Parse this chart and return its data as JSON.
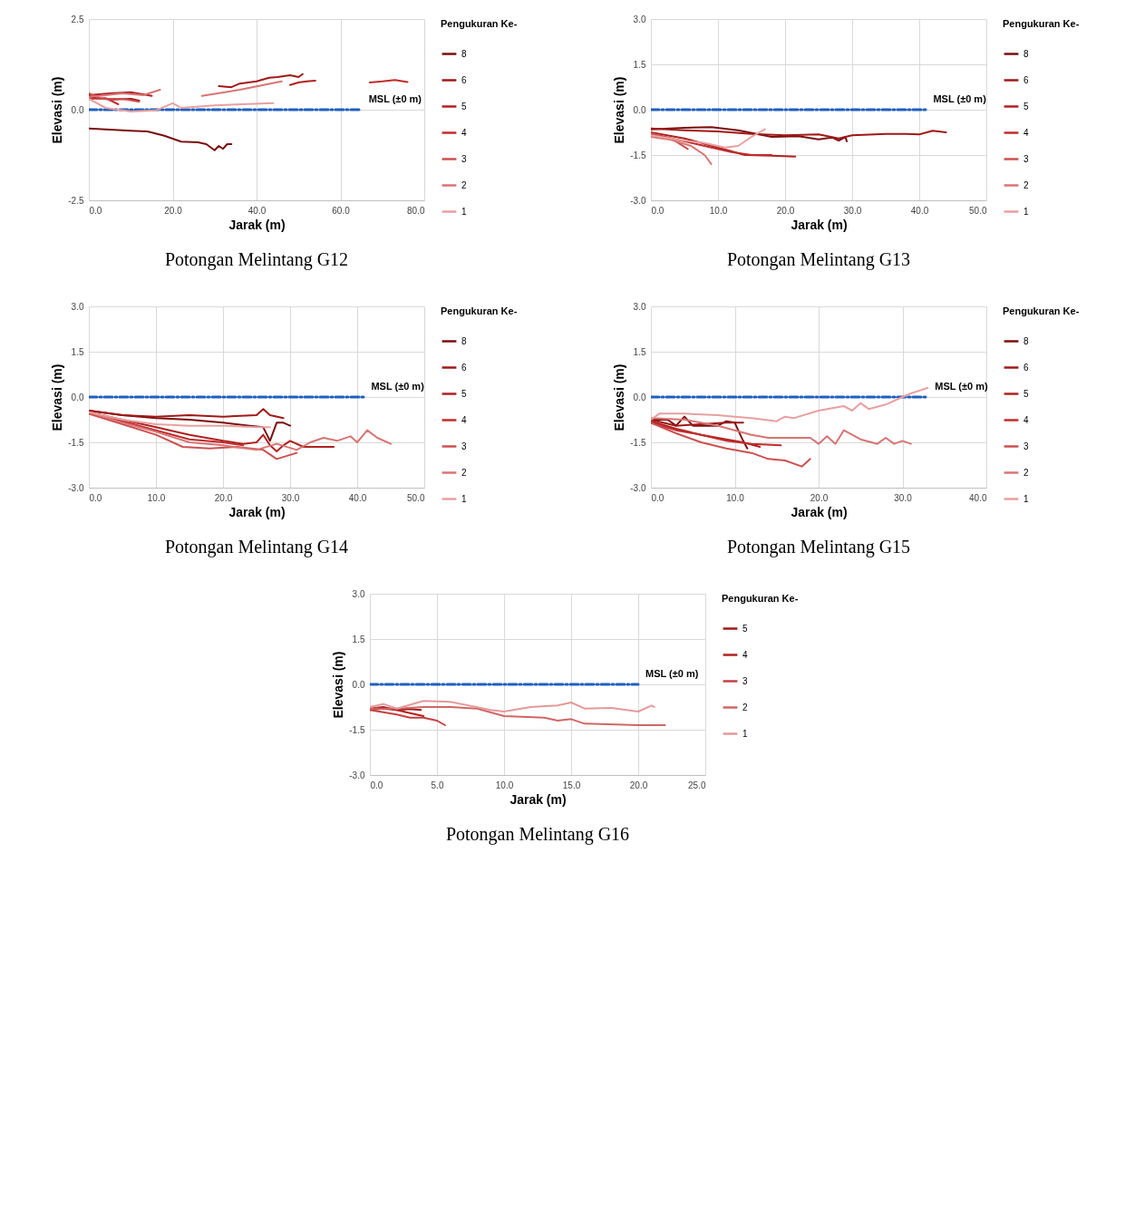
{
  "chart_data": [
    {
      "type": "line",
      "title": "Potongan Melintang G12",
      "xlabel": "Jarak (m)",
      "ylabel": "Elevasi (m)",
      "legend_title": "Pengukuran Ke-",
      "legend": "right",
      "grid": true,
      "xlim": [
        0,
        80
      ],
      "xticks": [
        {
          "value": 0,
          "label": "0.0"
        },
        {
          "value": 20,
          "label": "20.0"
        },
        {
          "value": 40,
          "label": "40.0"
        },
        {
          "value": 60,
          "label": "60.0"
        },
        {
          "value": 80,
          "label": "80.0"
        }
      ],
      "ylim": [
        -2.5,
        2.5
      ],
      "yticks": [
        -2.5,
        {
          "value": 0,
          "label": "0.0"
        },
        2.5
      ],
      "annotations": [
        {
          "text": "MSL (±0 m)",
          "x": 65,
          "y": 0
        }
      ],
      "series": [
        {
          "color": "#1f5fbf",
          "line_style": "dashed",
          "x": [
            0,
            65
          ],
          "values": [
            0,
            0
          ]
        },
        {
          "name": "8",
          "color": "#7a0f0f",
          "x": [
            0,
            5,
            10,
            14,
            18,
            22,
            26,
            28,
            30,
            31,
            32,
            33,
            34
          ],
          "values": [
            -0.52,
            -0.55,
            -0.58,
            -0.6,
            -0.72,
            -0.88,
            -0.9,
            -0.95,
            -1.12,
            -1.0,
            -1.08,
            -0.95,
            -0.95
          ]
        },
        {
          "name": "6",
          "color": "#a01818",
          "x": [
            0,
            3,
            6,
            10,
            12,
            20,
            31,
            34,
            36,
            40,
            43,
            45,
            48,
            50,
            51
          ],
          "values": [
            0.35,
            0.3,
            0.28,
            0.3,
            0.25,
            null,
            0.65,
            0.62,
            0.72,
            0.78,
            0.88,
            0.9,
            0.95,
            0.9,
            0.98
          ]
        },
        {
          "name": "5",
          "color": "#b02020",
          "x": [
            0,
            5,
            10,
            15,
            30,
            48,
            50,
            52,
            54
          ],
          "values": [
            0.4,
            0.45,
            0.48,
            0.38,
            null,
            0.68,
            0.75,
            0.78,
            0.8
          ]
        },
        {
          "name": "4",
          "color": "#c02c2c",
          "x": [
            0,
            4,
            7,
            40,
            67,
            70,
            73,
            76
          ],
          "values": [
            0.3,
            0.32,
            0.15,
            null,
            0.75,
            0.78,
            0.82,
            0.76
          ]
        },
        {
          "name": "3",
          "color": "#cc5050",
          "x": [
            0,
            3,
            8,
            12
          ],
          "values": [
            0.45,
            0.3,
            0.3,
            0.22
          ]
        },
        {
          "name": "2",
          "color": "#d87474",
          "x": [
            0,
            8,
            13,
            17,
            22,
            27,
            36,
            46
          ],
          "values": [
            0.35,
            0.45,
            0.4,
            0.55,
            null,
            0.38,
            0.55,
            0.78
          ]
        },
        {
          "name": "1",
          "color": "#e8a0a0",
          "x": [
            0,
            4,
            10,
            16,
            20,
            22,
            30,
            44
          ],
          "values": [
            0.3,
            0.05,
            -0.05,
            -0.02,
            0.18,
            0.05,
            0.12,
            0.18
          ]
        }
      ]
    },
    {
      "type": "line",
      "title": "Potongan Melintang G13",
      "xlabel": "Jarak (m)",
      "ylabel": "Elevasi (m)",
      "legend_title": "Pengukuran Ke-",
      "legend": "right",
      "grid": true,
      "xlim": [
        0,
        50
      ],
      "xticks": [
        {
          "value": 0,
          "label": "0.0"
        },
        {
          "value": 10,
          "label": "10.0"
        },
        {
          "value": 20,
          "label": "20.0"
        },
        {
          "value": 30,
          "label": "30.0"
        },
        {
          "value": 40,
          "label": "40.0"
        },
        {
          "value": 50,
          "label": "50.0"
        }
      ],
      "ylim": [
        -3,
        3
      ],
      "yticks": [
        {
          "value": -3,
          "label": "-3.0"
        },
        -1.5,
        {
          "value": 0,
          "label": "0.0"
        },
        1.5,
        {
          "value": 3,
          "label": "3.0"
        }
      ],
      "annotations": [
        {
          "text": "MSL (±0 m)",
          "x": 41,
          "y": 0
        }
      ],
      "series": [
        {
          "color": "#1f5fbf",
          "line_style": "dashed",
          "x": [
            0,
            41
          ],
          "values": [
            0,
            0
          ]
        },
        {
          "name": "8",
          "color": "#7a0f0f",
          "x": [
            0,
            5,
            9,
            13,
            18,
            22,
            25,
            27,
            28,
            29,
            29.2
          ],
          "values": [
            -0.65,
            -0.6,
            -0.58,
            -0.68,
            -0.9,
            -0.88,
            -0.98,
            -0.92,
            -1.02,
            -0.9,
            -1.05
          ]
        },
        {
          "name": "6",
          "color": "#a01818",
          "x": [
            0,
            5,
            10,
            15,
            20,
            25,
            28,
            30,
            35,
            38,
            40,
            42,
            44
          ],
          "values": [
            -0.62,
            -0.68,
            -0.72,
            -0.8,
            -0.85,
            -0.82,
            -0.95,
            -0.85,
            -0.8,
            -0.8,
            -0.82,
            -0.7,
            -0.75
          ]
        },
        {
          "name": "5",
          "color": "#b02020",
          "x": [
            0,
            5,
            10,
            14,
            18,
            21.5
          ],
          "values": [
            -0.75,
            -0.95,
            -1.25,
            -1.5,
            -1.52,
            -1.55
          ]
        },
        {
          "name": "4",
          "color": "#c02c2c",
          "x": [
            0,
            4,
            8,
            12,
            15,
            18
          ],
          "values": [
            -0.8,
            -1.0,
            -1.2,
            -1.4,
            -1.5,
            -1.5
          ]
        },
        {
          "name": "3",
          "color": "#cc5050",
          "x": [
            0,
            3,
            5.5
          ],
          "values": [
            -0.78,
            -0.95,
            -1.3
          ]
        },
        {
          "name": "2",
          "color": "#d87474",
          "x": [
            0,
            3,
            6,
            8,
            9
          ],
          "values": [
            -0.9,
            -1.0,
            -1.2,
            -1.5,
            -1.8
          ]
        },
        {
          "name": "1",
          "color": "#e8a0a0",
          "x": [
            0,
            4,
            8,
            11,
            13,
            15,
            17
          ],
          "values": [
            -0.85,
            -1.0,
            -1.1,
            -1.25,
            -1.2,
            -0.9,
            -0.65
          ]
        }
      ]
    },
    {
      "type": "line",
      "title": "Potongan Melintang G14",
      "xlabel": "Jarak (m)",
      "ylabel": "Elevasi (m)",
      "legend_title": "Pengukuran Ke-",
      "legend": "right",
      "grid": true,
      "xlim": [
        0,
        50
      ],
      "xticks": [
        {
          "value": 0,
          "label": "0.0"
        },
        {
          "value": 10,
          "label": "10.0"
        },
        {
          "value": 20,
          "label": "20.0"
        },
        {
          "value": 30,
          "label": "30.0"
        },
        {
          "value": 40,
          "label": "40.0"
        },
        {
          "value": 50,
          "label": "50.0"
        }
      ],
      "ylim": [
        -3,
        3
      ],
      "yticks": [
        {
          "value": -3,
          "label": "-3.0"
        },
        -1.5,
        {
          "value": 0,
          "label": "0.0"
        },
        1.5,
        {
          "value": 3,
          "label": "3.0"
        }
      ],
      "annotations": [
        {
          "text": "MSL (±0 m)",
          "x": 41,
          "y": 0
        }
      ],
      "series": [
        {
          "color": "#1f5fbf",
          "line_style": "dashed",
          "x": [
            0,
            41
          ],
          "values": [
            0,
            0
          ]
        },
        {
          "name": "8",
          "color": "#7a0f0f",
          "x": [
            0,
            5,
            10,
            15,
            20,
            24,
            26,
            27,
            28,
            29,
            30
          ],
          "values": [
            -0.45,
            -0.6,
            -0.7,
            -0.75,
            -0.85,
            -0.95,
            -1.0,
            -1.45,
            -0.85,
            -0.85,
            -0.95
          ]
        },
        {
          "name": "6",
          "color": "#a01818",
          "x": [
            0,
            5,
            10,
            15,
            20,
            25,
            26,
            27,
            29
          ],
          "values": [
            -0.45,
            -0.6,
            -0.65,
            -0.6,
            -0.65,
            -0.6,
            -0.4,
            -0.6,
            -0.7
          ]
        },
        {
          "name": "5",
          "color": "#b02020",
          "x": [
            0,
            5,
            10,
            15,
            20,
            23,
            25,
            26,
            27,
            28,
            29,
            30,
            32,
            36.5
          ],
          "values": [
            -0.5,
            -0.75,
            -1.0,
            -1.25,
            -1.45,
            -1.55,
            -1.5,
            -1.25,
            -1.6,
            -1.8,
            -1.6,
            -1.45,
            -1.65,
            -1.65
          ]
        },
        {
          "name": "4",
          "color": "#c02c2c",
          "x": [
            0,
            5,
            10,
            15,
            20,
            23
          ],
          "values": [
            -0.5,
            -0.8,
            -1.1,
            -1.4,
            -1.5,
            -1.6
          ]
        },
        {
          "name": "3",
          "color": "#cc5050",
          "x": [
            0,
            5,
            10,
            14,
            18,
            22,
            26,
            28,
            31
          ],
          "values": [
            -0.55,
            -0.9,
            -1.25,
            -1.65,
            -1.7,
            -1.65,
            -1.75,
            -2.05,
            -1.85
          ]
        },
        {
          "name": "2",
          "color": "#d87474",
          "x": [
            0,
            5,
            10,
            15,
            20,
            25,
            28,
            31,
            33,
            35,
            37,
            39,
            40,
            41.5,
            43,
            45
          ],
          "values": [
            -0.5,
            -0.85,
            -1.15,
            -1.5,
            -1.6,
            -1.75,
            -1.55,
            -1.75,
            -1.5,
            -1.35,
            -1.45,
            -1.3,
            -1.5,
            -1.1,
            -1.35,
            -1.55
          ]
        },
        {
          "name": "1",
          "color": "#e8a0a0",
          "x": [
            0,
            5,
            10,
            15,
            20,
            25,
            27
          ],
          "values": [
            -0.5,
            -0.75,
            -0.9,
            -0.95,
            -0.95,
            -1.0,
            -1.0
          ]
        }
      ]
    },
    {
      "type": "line",
      "title": "Potongan Melintang G15",
      "xlabel": "Jarak (m)",
      "ylabel": "Elevasi (m)",
      "legend_title": "Pengukuran Ke-",
      "legend": "right",
      "grid": true,
      "xlim": [
        0,
        40
      ],
      "xticks": [
        {
          "value": 0,
          "label": "0.0"
        },
        {
          "value": 10,
          "label": "10.0"
        },
        {
          "value": 20,
          "label": "20.0"
        },
        {
          "value": 30,
          "label": "30.0"
        },
        {
          "value": 40,
          "label": "40.0"
        }
      ],
      "ylim": [
        -3,
        3
      ],
      "yticks": [
        {
          "value": -3,
          "label": "-3.0"
        },
        -1.5,
        {
          "value": 0,
          "label": "0.0"
        },
        1.5,
        {
          "value": 3,
          "label": "3.0"
        }
      ],
      "annotations": [
        {
          "text": "MSL (±0 m)",
          "x": 33,
          "y": 0
        }
      ],
      "series": [
        {
          "color": "#1f5fbf",
          "line_style": "dashed",
          "x": [
            0,
            33
          ],
          "values": [
            0,
            0
          ]
        },
        {
          "name": "8",
          "color": "#7a0f0f",
          "x": [
            0,
            2,
            3,
            4,
            5,
            8,
            9,
            10,
            11,
            11.5
          ],
          "values": [
            -0.75,
            -0.75,
            -0.95,
            -0.65,
            -0.95,
            -0.95,
            -0.8,
            -0.85,
            -1.45,
            -1.7
          ]
        },
        {
          "name": "6",
          "color": "#a01818",
          "x": [
            0,
            3,
            6,
            9,
            11
          ],
          "values": [
            -0.75,
            -0.95,
            -0.9,
            -0.85,
            -0.85
          ]
        },
        {
          "name": "5",
          "color": "#b02020",
          "x": [
            0,
            3,
            6,
            9,
            11,
            13
          ],
          "values": [
            -0.8,
            -1.05,
            -1.25,
            -1.4,
            -1.5,
            -1.65
          ]
        },
        {
          "name": "4",
          "color": "#c02c2c",
          "x": [
            0,
            3,
            6,
            9,
            12,
            15.5
          ],
          "values": [
            -0.85,
            -1.1,
            -1.25,
            -1.45,
            -1.55,
            -1.6
          ]
        },
        {
          "name": "3",
          "color": "#cc5050",
          "x": [
            0,
            3,
            6,
            9,
            12,
            14,
            16,
            18,
            19
          ],
          "values": [
            -0.85,
            -1.2,
            -1.5,
            -1.7,
            -1.85,
            -2.05,
            -2.1,
            -2.3,
            -2.05
          ]
        },
        {
          "name": "2",
          "color": "#d87474",
          "x": [
            0,
            4,
            8,
            12,
            14,
            16,
            19,
            20,
            21,
            22,
            23,
            25,
            27,
            28,
            29,
            30,
            31
          ],
          "values": [
            -0.7,
            -0.75,
            -0.95,
            -1.25,
            -1.35,
            -1.35,
            -1.35,
            -1.55,
            -1.3,
            -1.55,
            -1.1,
            -1.4,
            -1.55,
            -1.35,
            -1.55,
            -1.45,
            -1.55
          ]
        },
        {
          "name": "1",
          "color": "#e8a0a0",
          "x": [
            0,
            1,
            4,
            8,
            10,
            12,
            15,
            16,
            17,
            20,
            23,
            24,
            25,
            26,
            28,
            30,
            31,
            33
          ],
          "values": [
            -0.75,
            -0.55,
            -0.55,
            -0.6,
            -0.65,
            -0.7,
            -0.8,
            -0.65,
            -0.7,
            -0.45,
            -0.3,
            -0.45,
            -0.2,
            -0.4,
            -0.25,
            0.0,
            0.12,
            0.3
          ]
        }
      ]
    },
    {
      "type": "line",
      "title": "Potongan Melintang G16",
      "xlabel": "Jarak (m)",
      "ylabel": "Elevasi (m)",
      "legend_title": "Pengukuran Ke-",
      "legend": "right",
      "grid": true,
      "xlim": [
        0,
        25
      ],
      "xticks": [
        {
          "value": 0,
          "label": "0.0"
        },
        {
          "value": 5,
          "label": "5.0"
        },
        {
          "value": 10,
          "label": "10.0"
        },
        {
          "value": 15,
          "label": "15.0"
        },
        {
          "value": 20,
          "label": "20.0"
        },
        {
          "value": 25,
          "label": "25.0"
        }
      ],
      "ylim": [
        -3,
        3
      ],
      "yticks": [
        {
          "value": -3,
          "label": "-3.0"
        },
        -1.5,
        {
          "value": 0,
          "label": "0.0"
        },
        1.5,
        {
          "value": 3,
          "label": "3.0"
        }
      ],
      "annotations": [
        {
          "text": "MSL (±0 m)",
          "x": 20,
          "y": 0
        }
      ],
      "series": [
        {
          "color": "#1f5fbf",
          "line_style": "dashed",
          "x": [
            0,
            20
          ],
          "values": [
            0,
            0
          ]
        },
        {
          "name": "5",
          "color": "#a01818",
          "x": [
            0,
            1,
            2,
            3,
            3.8
          ],
          "values": [
            -0.8,
            -0.75,
            -0.85,
            -0.82,
            -0.85
          ]
        },
        {
          "name": "4",
          "color": "#b02020",
          "x": [
            0,
            1,
            2,
            3,
            4
          ],
          "values": [
            -0.85,
            -0.8,
            -0.85,
            -0.95,
            -1.05
          ]
        },
        {
          "name": "3",
          "color": "#c44040",
          "x": [
            0,
            2,
            3,
            4,
            5,
            5.6
          ],
          "values": [
            -0.85,
            -1.0,
            -1.1,
            -1.1,
            -1.2,
            -1.35
          ]
        },
        {
          "name": "2",
          "color": "#d06666",
          "x": [
            0,
            2,
            4,
            6,
            8,
            10,
            13,
            14,
            15,
            16,
            20,
            22
          ],
          "values": [
            -0.8,
            -0.8,
            -0.75,
            -0.75,
            -0.8,
            -1.05,
            -1.1,
            -1.2,
            -1.15,
            -1.3,
            -1.35,
            -1.35
          ]
        },
        {
          "name": "1",
          "color": "#e49a9a",
          "x": [
            0,
            1,
            2,
            4,
            6,
            9,
            10,
            12,
            14,
            15,
            16,
            18,
            20,
            21,
            21.2
          ],
          "values": [
            -0.75,
            -0.65,
            -0.8,
            -0.55,
            -0.58,
            -0.85,
            -0.9,
            -0.75,
            -0.7,
            -0.6,
            -0.8,
            -0.78,
            -0.9,
            -0.7,
            -0.75
          ]
        }
      ]
    }
  ]
}
